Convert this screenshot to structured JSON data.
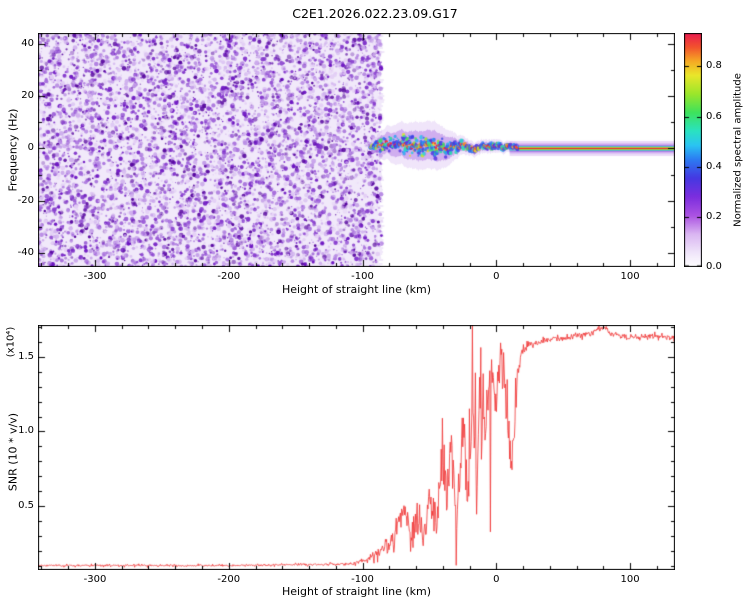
{
  "title": "C2E1.2026.022.23.09.G17",
  "colors": {
    "background": "#ffffff",
    "axis": "#000000",
    "snr_line": "#f03434",
    "noise_bg": "#f1e9fa",
    "noise_dots": [
      "#e3cdf5",
      "#cfaeee",
      "#b78ae4",
      "#9d5fd9",
      "#8336cd",
      "#6b12c1",
      "#57079f"
    ],
    "fuzz": "#c9a2ee",
    "fuzz2": "#a86ae2",
    "stripe_layers": [
      [
        15,
        "#e9d8f7",
        0.95
      ],
      [
        10,
        "#cfa8f0",
        0.9
      ],
      [
        7,
        "#a263e2",
        0.65
      ],
      [
        5,
        "#38c6ea",
        0.8
      ],
      [
        3.4,
        "#3bdc5a",
        0.95
      ],
      [
        2.2,
        "#e6e428",
        0.95
      ],
      [
        1.4,
        "#f07828",
        1
      ],
      [
        0.9,
        "#ea1c30",
        1
      ]
    ]
  },
  "colorbar": {
    "label": "Normalized spectral amplitude",
    "ticks": [
      "0.0",
      "0.2",
      "0.4",
      "0.6",
      "0.8"
    ],
    "tick_values": [
      0,
      0.2,
      0.4,
      0.6,
      0.8
    ],
    "vmin": 0,
    "vmax": 0.9333,
    "stops": [
      [
        0,
        "#ffffff"
      ],
      [
        0.06,
        "#f0e6fa"
      ],
      [
        0.14,
        "#dab6f2"
      ],
      [
        0.22,
        "#ab52e2"
      ],
      [
        0.3,
        "#7c2ede"
      ],
      [
        0.38,
        "#4538e2"
      ],
      [
        0.46,
        "#2c7cf2"
      ],
      [
        0.52,
        "#2ac4f2"
      ],
      [
        0.58,
        "#2ae2c2"
      ],
      [
        0.66,
        "#3ee25c"
      ],
      [
        0.74,
        "#9ce62a"
      ],
      [
        0.82,
        "#eae62a"
      ],
      [
        0.88,
        "#f6a824"
      ],
      [
        0.94,
        "#f2522e"
      ],
      [
        1,
        "#ea1a50"
      ]
    ]
  },
  "chart_data": [
    {
      "type": "heatmap",
      "name": "spectrogram",
      "xlabel": "Height of straight line (km)",
      "ylabel": "Frequency (Hz)",
      "xlim": [
        -342.6,
        133.6
      ],
      "ylim": [
        -45.4,
        44.2
      ],
      "xticks": [
        -300,
        -200,
        -100,
        0,
        100
      ],
      "xtick_labels": [
        "-300",
        "-200",
        "-100",
        "0",
        "100"
      ],
      "xtick_minor_step": 20,
      "yticks": [
        -40,
        -20,
        0,
        20,
        40
      ],
      "ytick_labels": [
        "-40",
        "-20",
        "0",
        "20",
        "40"
      ],
      "ytick_minor_step": 10,
      "regions": {
        "noise_field": {
          "x_start_km": -342.6,
          "x_end_km": -88,
          "description": "broadband purple speckle noise across all frequencies"
        },
        "chaotic_signal": {
          "x_start_km": -93,
          "x_end_km": 15,
          "center_hz": 0,
          "halfwidth_envelope": [
            [
              -93,
              1
            ],
            [
              -88,
              4
            ],
            [
              -75,
              6
            ],
            [
              -60,
              7
            ],
            [
              -45,
              7
            ],
            [
              -35,
              5
            ],
            [
              -28,
              3
            ],
            [
              -20,
              2.2
            ],
            [
              -10,
              2
            ],
            [
              0,
              2
            ],
            [
              10,
              1.6
            ],
            [
              16,
              1.3
            ]
          ],
          "description": "high-amplitude wandering carrier tone with multicolor speckle"
        },
        "stable_carrier": {
          "x_start_km": 10,
          "x_end_km": 133.6,
          "center_hz": 0,
          "description": "narrow constant high-amplitude tone at 0 Hz"
        }
      },
      "seed": 20260222
    },
    {
      "type": "line",
      "name": "snr",
      "xlabel": "Height of straight line (km)",
      "ylabel": "SNR (10 * v/v)",
      "ylabel_scale": "(x10⁴)",
      "xlim": [
        -342.6,
        133.6
      ],
      "ylim": [
        0.07,
        1.715
      ],
      "xticks": [
        -300,
        -200,
        -100,
        0,
        100
      ],
      "xtick_labels": [
        "-300",
        "-200",
        "-100",
        "0",
        "100"
      ],
      "xtick_minor_step": 20,
      "yticks": [
        0.5,
        1.0,
        1.5
      ],
      "ytick_labels": [
        "0.5",
        "1.0",
        "1.5"
      ],
      "ytick_minor_step": 0.1,
      "series": [
        {
          "name": "SNR",
          "color": "#f03434",
          "anchors": [
            [
              -342.6,
              0.1,
              0.012
            ],
            [
              -200,
              0.1,
              0.012
            ],
            [
              -150,
              0.105,
              0.013
            ],
            [
              -110,
              0.11,
              0.016
            ],
            [
              -98,
              0.13,
              0.03
            ],
            [
              -90,
              0.17,
              0.06
            ],
            [
              -82,
              0.22,
              0.09
            ],
            [
              -75,
              0.34,
              0.13
            ],
            [
              -69,
              0.5,
              0.14
            ],
            [
              -64,
              0.28,
              0.16
            ],
            [
              -59,
              0.46,
              0.2
            ],
            [
              -54,
              0.3,
              0.18
            ],
            [
              -49,
              0.6,
              0.24
            ],
            [
              -45,
              0.42,
              0.28
            ],
            [
              -41,
              0.8,
              0.3
            ],
            [
              -37,
              0.55,
              0.33
            ],
            [
              -33,
              0.95,
              0.33
            ],
            [
              -30,
              0.25,
              0.18
            ],
            [
              -27,
              0.85,
              0.38
            ],
            [
              -24,
              1.05,
              0.32
            ],
            [
              -21,
              0.6,
              0.38
            ],
            [
              -18,
              1.15,
              0.34
            ],
            [
              -15,
              0.8,
              0.38
            ],
            [
              -12,
              1.2,
              0.32
            ],
            [
              -9,
              0.95,
              0.34
            ],
            [
              -6,
              1.3,
              0.28
            ],
            [
              -3,
              1.45,
              0.24
            ],
            [
              0,
              1.25,
              0.3
            ],
            [
              3,
              1.5,
              0.2
            ],
            [
              6,
              1.38,
              0.26
            ],
            [
              9,
              1.05,
              0.28
            ],
            [
              12,
              0.7,
              0.22
            ],
            [
              15,
              1.3,
              0.18
            ],
            [
              18,
              1.5,
              0.1
            ],
            [
              22,
              1.56,
              0.07
            ],
            [
              28,
              1.59,
              0.045
            ],
            [
              40,
              1.62,
              0.035
            ],
            [
              55,
              1.63,
              0.03
            ],
            [
              70,
              1.66,
              0.035
            ],
            [
              80,
              1.7,
              0.028
            ],
            [
              88,
              1.65,
              0.03
            ],
            [
              100,
              1.63,
              0.03
            ],
            [
              115,
              1.64,
              0.03
            ],
            [
              133.6,
              1.63,
              0.03
            ]
          ]
        }
      ],
      "seed": 17
    }
  ]
}
